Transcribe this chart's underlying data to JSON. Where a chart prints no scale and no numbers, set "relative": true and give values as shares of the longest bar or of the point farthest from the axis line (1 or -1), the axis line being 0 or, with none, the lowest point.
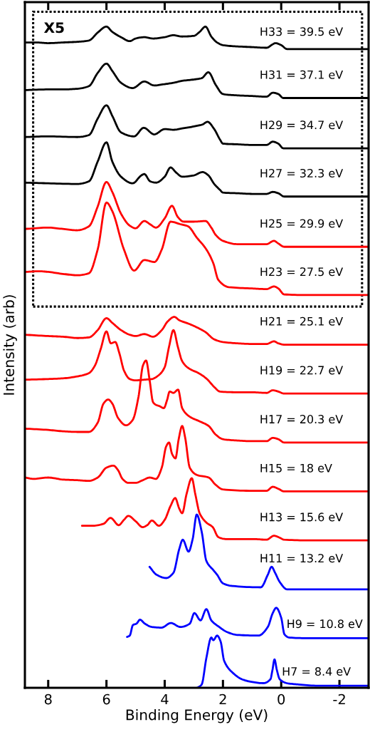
{
  "chart_data": {
    "type": "line",
    "relative": true,
    "xlabel": "Binding Energy (eV)",
    "ylabel": "Intensity (arb)",
    "xlim": [
      8.8,
      -3
    ],
    "xticks": [
      8,
      6,
      4,
      2,
      0,
      -2
    ],
    "annotations": [
      "X5"
    ],
    "series": [
      {
        "name": "H33 = 39.5 eV",
        "color": "#000000",
        "x": [
          8.8,
          8.4,
          8.0,
          7.5,
          7.0,
          6.6,
          6.3,
          6.0,
          5.8,
          5.5,
          5.2,
          5.0,
          4.7,
          4.4,
          4.0,
          3.7,
          3.4,
          3.0,
          2.8,
          2.6,
          2.4,
          2.2,
          2.0,
          1.5,
          1.0,
          0.5,
          0.3,
          0.2,
          0.0,
          -0.2,
          -1,
          -3
        ],
        "values": [
          0.976,
          0.976,
          0.975,
          0.976,
          0.977,
          0.979,
          0.991,
          1.0,
          0.992,
          0.984,
          0.978,
          0.982,
          0.984,
          0.982,
          0.984,
          0.987,
          0.985,
          0.986,
          0.992,
          1.0,
          0.985,
          0.976,
          0.972,
          0.97,
          0.969,
          0.968,
          0.973,
          0.975,
          0.972,
          0.966,
          0.966,
          0.966
        ]
      },
      {
        "name": "H31 = 37.1 eV",
        "color": "#000000",
        "x": [
          8.8,
          8.0,
          7.5,
          7.0,
          6.6,
          6.3,
          6.0,
          5.8,
          5.5,
          5.1,
          4.7,
          4.36,
          4.0,
          3.7,
          3.4,
          3.0,
          2.73,
          2.5,
          2.25,
          2.0,
          1.5,
          1.0,
          0.5,
          0.29,
          0.1,
          -0.07,
          -1,
          -3
        ],
        "values": [
          0.904,
          0.905,
          0.905,
          0.906,
          0.91,
          0.93,
          0.944,
          0.933,
          0.915,
          0.907,
          0.917,
          0.911,
          0.913,
          0.915,
          0.918,
          0.92,
          0.922,
          0.931,
          0.912,
          0.898,
          0.896,
          0.895,
          0.894,
          0.9,
          0.898,
          0.892,
          0.892,
          0.892
        ]
      },
      {
        "name": "H29 = 34.7 eV",
        "color": "#000000",
        "x": [
          8.8,
          8.0,
          7.0,
          6.6,
          6.3,
          6.0,
          5.8,
          5.5,
          5.05,
          4.72,
          4.36,
          4.0,
          3.7,
          3.4,
          3.0,
          2.7,
          2.53,
          2.3,
          2.1,
          2.0,
          1.5,
          1.0,
          0.5,
          0.29,
          0.1,
          -0.07,
          -1,
          -3
        ],
        "values": [
          0.833,
          0.834,
          0.833,
          0.836,
          0.861,
          0.881,
          0.865,
          0.84,
          0.834,
          0.847,
          0.837,
          0.845,
          0.844,
          0.846,
          0.849,
          0.852,
          0.856,
          0.845,
          0.829,
          0.823,
          0.822,
          0.821,
          0.821,
          0.826,
          0.823,
          0.816,
          0.816,
          0.816
        ]
      },
      {
        "name": "H27 = 32.3 eV",
        "color": "#000000",
        "x": [
          8.8,
          8.0,
          7.0,
          6.6,
          6.3,
          6.0,
          5.8,
          5.5,
          5.1,
          4.8,
          4.7,
          4.5,
          4.3,
          4.0,
          3.8,
          3.6,
          3.4,
          3.0,
          2.7,
          2.5,
          2.3,
          2.1,
          2.0,
          1.5,
          1.0,
          0.5,
          0.29,
          0.1,
          -0.1,
          -1,
          -3
        ],
        "values": [
          0.764,
          0.763,
          0.762,
          0.766,
          0.796,
          0.825,
          0.796,
          0.773,
          0.763,
          0.775,
          0.777,
          0.766,
          0.764,
          0.773,
          0.787,
          0.779,
          0.773,
          0.775,
          0.78,
          0.775,
          0.762,
          0.753,
          0.749,
          0.748,
          0.747,
          0.747,
          0.75,
          0.748,
          0.743,
          0.743,
          0.743
        ]
      },
      {
        "name": "H25 = 29.9 eV",
        "color": "#ff0000",
        "x": [
          8.8,
          8.0,
          7.5,
          7.0,
          6.6,
          6.3,
          6.0,
          5.8,
          5.5,
          5.2,
          5.0,
          4.7,
          4.5,
          4.3,
          4.0,
          3.75,
          3.55,
          3.35,
          3.0,
          2.6,
          2.4,
          2.25,
          2.0,
          1.5,
          1.0,
          0.5,
          0.25,
          0.1,
          -0.1,
          -1,
          -3
        ],
        "values": [
          0.694,
          0.696,
          0.694,
          0.692,
          0.698,
          0.728,
          0.765,
          0.75,
          0.717,
          0.699,
          0.695,
          0.706,
          0.701,
          0.696,
          0.71,
          0.729,
          0.712,
          0.705,
          0.705,
          0.706,
          0.696,
          0.685,
          0.676,
          0.671,
          0.671,
          0.671,
          0.676,
          0.672,
          0.667,
          0.667,
          0.667
        ]
      },
      {
        "name": "H23 = 27.5 eV",
        "color": "#ff0000",
        "x": [
          8.8,
          8.3,
          8.0,
          7.5,
          7.0,
          6.6,
          6.3,
          6.0,
          5.8,
          5.4,
          5.05,
          4.7,
          4.35,
          4.1,
          3.8,
          3.45,
          3.2,
          2.9,
          2.57,
          2.33,
          2.16,
          1.8,
          1.0,
          0.5,
          0.25,
          0.1,
          -0.1,
          -1,
          -3
        ],
        "values": [
          0.629,
          0.63,
          0.629,
          0.626,
          0.624,
          0.627,
          0.663,
          0.734,
          0.721,
          0.663,
          0.631,
          0.647,
          0.644,
          0.663,
          0.705,
          0.701,
          0.698,
          0.681,
          0.663,
          0.642,
          0.617,
          0.606,
          0.604,
          0.603,
          0.607,
          0.604,
          0.595,
          0.594,
          0.594
        ]
      },
      {
        "name": "H21 = 25.1 eV",
        "color": "#ff0000",
        "x": [
          8.8,
          8.0,
          7.5,
          7.0,
          6.6,
          6.3,
          6.0,
          5.8,
          5.5,
          5.2,
          5.0,
          4.7,
          4.4,
          4.1,
          3.9,
          3.67,
          3.5,
          3.14,
          2.8,
          2.6,
          2.3,
          2.0,
          1.5,
          1.0,
          0.5,
          0.25,
          0.1,
          -0.1,
          -1,
          -3
        ],
        "values": [
          0.534,
          0.532,
          0.531,
          0.529,
          0.53,
          0.541,
          0.559,
          0.552,
          0.541,
          0.534,
          0.532,
          0.535,
          0.531,
          0.541,
          0.554,
          0.561,
          0.556,
          0.55,
          0.543,
          0.538,
          0.527,
          0.523,
          0.521,
          0.52,
          0.52,
          0.524,
          0.521,
          0.519,
          0.519,
          0.519
        ]
      },
      {
        "name": "H19 = 22.7 eV",
        "color": "#ff0000",
        "x": [
          8.8,
          8.0,
          7.5,
          7.0,
          6.6,
          6.4,
          6.2,
          6.0,
          5.85,
          5.7,
          5.55,
          5.4,
          5.2,
          5.0,
          4.7,
          4.44,
          4.2,
          4.0,
          3.85,
          3.7,
          3.55,
          3.4,
          3.2,
          2.8,
          2.55,
          2.3,
          2.1,
          1.5,
          1.0,
          0.5,
          0.29,
          0.1,
          -0.1,
          -1,
          -3
        ],
        "values": [
          0.466,
          0.467,
          0.468,
          0.471,
          0.476,
          0.487,
          0.512,
          0.539,
          0.521,
          0.523,
          0.505,
          0.48,
          0.467,
          0.465,
          0.466,
          0.467,
          0.473,
          0.485,
          0.516,
          0.541,
          0.516,
          0.494,
          0.484,
          0.475,
          0.467,
          0.455,
          0.448,
          0.447,
          0.447,
          0.446,
          0.45,
          0.448,
          0.445,
          0.445,
          0.445
        ]
      },
      {
        "name": "H17 = 20.3 eV",
        "color": "#ff0000",
        "x": [
          8.8,
          8.0,
          7.5,
          7.0,
          6.6,
          6.3,
          6.1,
          5.94,
          5.8,
          5.6,
          5.33,
          5.1,
          4.9,
          4.75,
          4.64,
          4.52,
          4.4,
          4.3,
          4.18,
          4.03,
          3.92,
          3.83,
          3.7,
          3.54,
          3.4,
          3.14,
          2.8,
          2.49,
          2.25,
          2.0,
          1.5,
          1.0,
          0.5,
          0.29,
          0.1,
          -0.1,
          -1,
          -3
        ],
        "values": [
          0.392,
          0.39,
          0.388,
          0.387,
          0.387,
          0.401,
          0.43,
          0.436,
          0.43,
          0.408,
          0.397,
          0.405,
          0.44,
          0.487,
          0.495,
          0.466,
          0.432,
          0.428,
          0.426,
          0.423,
          0.435,
          0.448,
          0.446,
          0.451,
          0.423,
          0.41,
          0.403,
          0.396,
          0.383,
          0.376,
          0.374,
          0.373,
          0.373,
          0.378,
          0.376,
          0.371,
          0.371,
          0.371
        ]
      },
      {
        "name": "H15 = 18 eV",
        "color": "#ff0000",
        "x": [
          8.8,
          8.5,
          8.0,
          7.5,
          7.0,
          6.6,
          6.3,
          6.0,
          5.76,
          5.6,
          5.45,
          5.25,
          5.0,
          4.75,
          4.52,
          4.3,
          4.1,
          3.95,
          3.85,
          3.75,
          3.63,
          3.52,
          3.4,
          3.3,
          3.14,
          2.9,
          2.49,
          2.25,
          2.0,
          1.0,
          0.5,
          0.29,
          0.1,
          -0.1,
          -1,
          -3
        ],
        "values": [
          0.318,
          0.316,
          0.318,
          0.315,
          0.314,
          0.313,
          0.318,
          0.333,
          0.336,
          0.329,
          0.316,
          0.31,
          0.31,
          0.314,
          0.318,
          0.316,
          0.333,
          0.365,
          0.371,
          0.354,
          0.347,
          0.376,
          0.396,
          0.379,
          0.333,
          0.322,
          0.318,
          0.307,
          0.3,
          0.298,
          0.298,
          0.304,
          0.301,
          0.297,
          0.297,
          0.297
        ]
      },
      {
        "name": "H13 = 15.6 eV",
        "color": "#ff0000",
        "x": [
          6.84,
          6.5,
          6.1,
          5.86,
          5.58,
          5.4,
          5.25,
          5.0,
          4.76,
          4.6,
          4.44,
          4.2,
          4.0,
          3.8,
          3.64,
          3.5,
          3.4,
          3.25,
          3.07,
          2.95,
          2.8,
          2.57,
          2.35,
          2.16,
          1.9,
          1.0,
          0.5,
          0.25,
          0.05,
          -0.1,
          -1,
          -3
        ],
        "values": [
          0.245,
          0.245,
          0.248,
          0.257,
          0.246,
          0.254,
          0.26,
          0.252,
          0.243,
          0.246,
          0.253,
          0.245,
          0.254,
          0.275,
          0.287,
          0.271,
          0.264,
          0.293,
          0.317,
          0.293,
          0.264,
          0.25,
          0.243,
          0.228,
          0.225,
          0.225,
          0.224,
          0.23,
          0.227,
          0.224,
          0.223,
          0.223
        ]
      },
      {
        "name": "H11 = 13.2 eV",
        "color": "#0000ff",
        "x": [
          4.52,
          4.28,
          3.95,
          3.7,
          3.5,
          3.38,
          3.18,
          3.04,
          2.9,
          2.73,
          2.57,
          2.33,
          2.2,
          2.0,
          1.67,
          0.7,
          0.46,
          0.33,
          0.21,
          0.05,
          -0.2,
          -1,
          -3
        ],
        "values": [
          0.183,
          0.171,
          0.166,
          0.174,
          0.21,
          0.224,
          0.206,
          0.225,
          0.262,
          0.236,
          0.192,
          0.178,
          0.171,
          0.158,
          0.154,
          0.152,
          0.171,
          0.183,
          0.174,
          0.16,
          0.149,
          0.149,
          0.149
        ]
      },
      {
        "name": "H9 = 10.8 eV",
        "color": "#0000ff",
        "x": [
          5.29,
          5.2,
          5.09,
          4.97,
          4.85,
          4.68,
          4.44,
          4.11,
          3.79,
          3.46,
          3.14,
          2.98,
          2.77,
          2.57,
          2.4,
          2.16,
          1.84,
          1.51,
          0.78,
          0.46,
          0.29,
          0.17,
          0.0,
          -0.11,
          -0.28,
          -1,
          -3
        ],
        "values": [
          0.077,
          0.079,
          0.095,
          0.097,
          0.103,
          0.097,
          0.092,
          0.091,
          0.098,
          0.092,
          0.097,
          0.113,
          0.102,
          0.119,
          0.102,
          0.093,
          0.084,
          0.08,
          0.079,
          0.092,
          0.113,
          0.121,
          0.106,
          0.081,
          0.076,
          0.075,
          0.075
        ]
      },
      {
        "name": "H7 = 8.4 eV",
        "color": "#0000ff",
        "x": [
          2.88,
          2.73,
          2.57,
          2.4,
          2.33,
          2.2,
          2.08,
          1.96,
          1.67,
          1.35,
          1.02,
          0.62,
          0.37,
          0.3,
          0.23,
          0.15,
          0.05,
          -0.2,
          -0.6,
          -1.33,
          -3
        ],
        "values": [
          0.0,
          0.005,
          0.045,
          0.076,
          0.072,
          0.079,
          0.07,
          0.041,
          0.023,
          0.013,
          0.009,
          0.007,
          0.013,
          0.027,
          0.043,
          0.027,
          0.013,
          0.007,
          0.005,
          0.003,
          0.003
        ]
      }
    ]
  }
}
